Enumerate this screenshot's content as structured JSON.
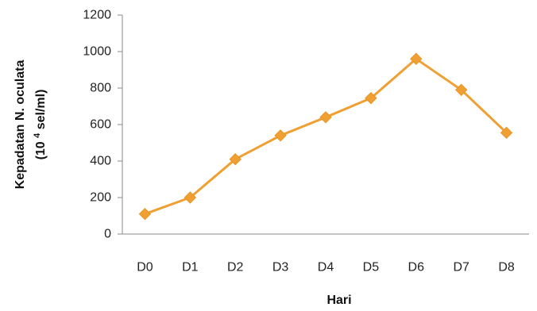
{
  "chart_data": {
    "type": "line",
    "categories": [
      "D0",
      "D1",
      "D2",
      "D3",
      "D4",
      "D5",
      "D6",
      "D7",
      "D8"
    ],
    "series": [
      {
        "values": [
          110,
          200,
          410,
          540,
          640,
          745,
          960,
          790,
          555
        ]
      }
    ],
    "xlabel": "Hari",
    "ylabel": {
      "line1": "Kepadatan N. oculata",
      "line2_before_sup": "(10",
      "line2_sup": "4",
      "line2_after_sup": " sel/ml)"
    },
    "ylim": [
      0,
      1200
    ],
    "yticks": [
      "0",
      "200",
      "400",
      "600",
      "800",
      "1000",
      "1200"
    ],
    "grid": false,
    "legend": "none",
    "marker": "diamond",
    "colors": {
      "line": "#F0A033",
      "marker": "#F0A033",
      "marker_stroke": "#E89524",
      "axis": "#8A8A8A"
    }
  }
}
